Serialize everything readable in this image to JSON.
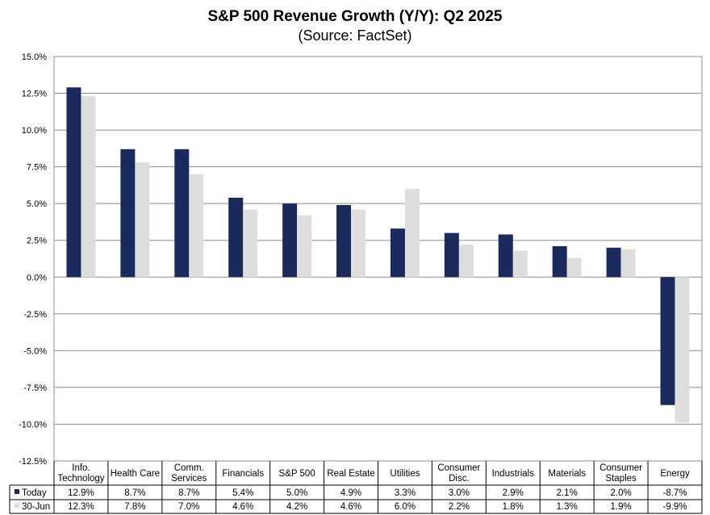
{
  "chart_data": {
    "type": "bar",
    "title": "S&P 500 Revenue Growth (Y/Y): Q2 2025",
    "subtitle": "(Source: FactSet)",
    "categories": [
      [
        "Info.",
        "Technology"
      ],
      [
        "Health Care"
      ],
      [
        "Comm.",
        "Services"
      ],
      [
        "Financials"
      ],
      [
        "S&P 500"
      ],
      [
        "Real Estate"
      ],
      [
        "Utilities"
      ],
      [
        "Consumer",
        "Disc."
      ],
      [
        "Industrials"
      ],
      [
        "Materials"
      ],
      [
        "Consumer",
        "Staples"
      ],
      [
        "Energy"
      ]
    ],
    "series": [
      {
        "name": "Today",
        "color": "#1a2a5c",
        "values": [
          12.9,
          8.7,
          8.7,
          5.4,
          5.0,
          4.9,
          3.3,
          3.0,
          2.9,
          2.1,
          2.0,
          -8.7
        ],
        "labels": [
          "12.9%",
          "8.7%",
          "8.7%",
          "5.4%",
          "5.0%",
          "4.9%",
          "3.3%",
          "3.0%",
          "2.9%",
          "2.1%",
          "2.0%",
          "-8.7%"
        ]
      },
      {
        "name": "30-Jun",
        "color": "#dedede",
        "values": [
          12.3,
          7.8,
          7.0,
          4.6,
          4.2,
          4.6,
          6.0,
          2.2,
          1.8,
          1.3,
          1.9,
          -9.9
        ],
        "labels": [
          "12.3%",
          "7.8%",
          "7.0%",
          "4.6%",
          "4.2%",
          "4.6%",
          "6.0%",
          "2.2%",
          "1.8%",
          "1.3%",
          "1.9%",
          "-9.9%"
        ]
      }
    ],
    "ylim": [
      -12.5,
      15.0
    ],
    "ytick_values": [
      15.0,
      12.5,
      10.0,
      7.5,
      5.0,
      2.5,
      0.0,
      -2.5,
      -5.0,
      -7.5,
      -10.0,
      -12.5
    ],
    "ytick_labels": [
      "15.0%",
      "12.5%",
      "10.0%",
      "7.5%",
      "5.0%",
      "2.5%",
      "0.0%",
      "-2.5%",
      "-5.0%",
      "-7.5%",
      "-10.0%",
      "-12.5%"
    ],
    "grid": true,
    "legend_placement": "data-table-left"
  }
}
